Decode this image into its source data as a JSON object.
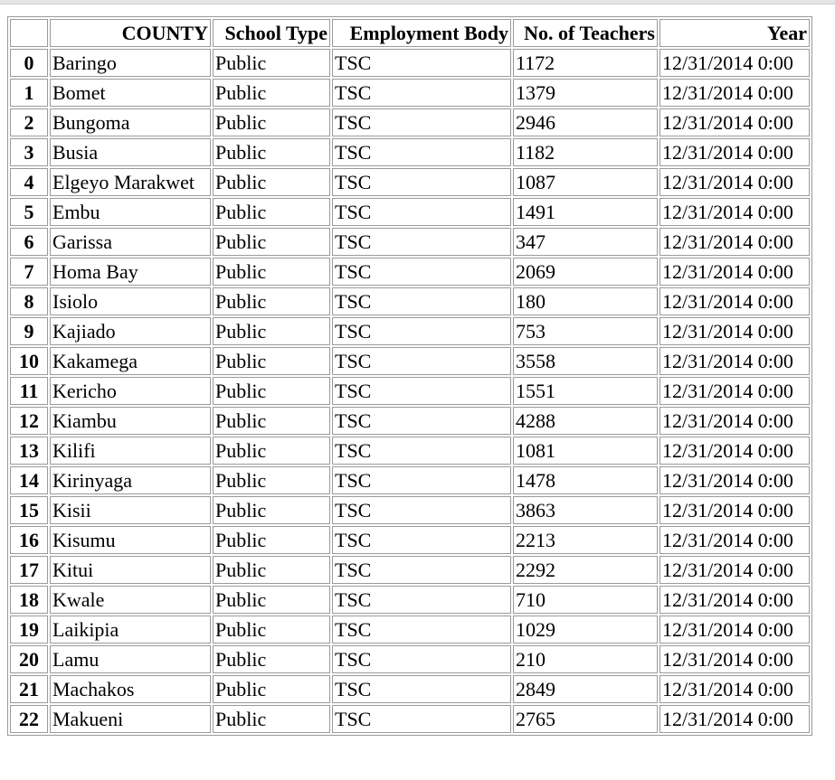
{
  "table": {
    "headers": {
      "index": "",
      "county": "COUNTY",
      "school_type": "School Type",
      "employment_body": "Employment Body",
      "teachers": "No. of Teachers",
      "year": "Year"
    },
    "rows": [
      {
        "index": "0",
        "county": "Baringo",
        "school_type": "Public",
        "employment_body": "TSC",
        "teachers": "1172",
        "year": "12/31/2014 0:00"
      },
      {
        "index": "1",
        "county": "Bomet",
        "school_type": "Public",
        "employment_body": "TSC",
        "teachers": "1379",
        "year": "12/31/2014 0:00"
      },
      {
        "index": "2",
        "county": "Bungoma",
        "school_type": "Public",
        "employment_body": "TSC",
        "teachers": "2946",
        "year": "12/31/2014 0:00"
      },
      {
        "index": "3",
        "county": "Busia",
        "school_type": "Public",
        "employment_body": "TSC",
        "teachers": "1182",
        "year": "12/31/2014 0:00"
      },
      {
        "index": "4",
        "county": "Elgeyo Marakwet",
        "school_type": "Public",
        "employment_body": "TSC",
        "teachers": "1087",
        "year": "12/31/2014 0:00"
      },
      {
        "index": "5",
        "county": "Embu",
        "school_type": "Public",
        "employment_body": "TSC",
        "teachers": "1491",
        "year": "12/31/2014 0:00"
      },
      {
        "index": "6",
        "county": "Garissa",
        "school_type": "Public",
        "employment_body": "TSC",
        "teachers": "347",
        "year": "12/31/2014 0:00"
      },
      {
        "index": "7",
        "county": "Homa Bay",
        "school_type": "Public",
        "employment_body": "TSC",
        "teachers": "2069",
        "year": "12/31/2014 0:00"
      },
      {
        "index": "8",
        "county": "Isiolo",
        "school_type": "Public",
        "employment_body": "TSC",
        "teachers": "180",
        "year": "12/31/2014 0:00"
      },
      {
        "index": "9",
        "county": "Kajiado",
        "school_type": "Public",
        "employment_body": "TSC",
        "teachers": "753",
        "year": "12/31/2014 0:00"
      },
      {
        "index": "10",
        "county": "Kakamega",
        "school_type": "Public",
        "employment_body": "TSC",
        "teachers": "3558",
        "year": "12/31/2014 0:00"
      },
      {
        "index": "11",
        "county": "Kericho",
        "school_type": "Public",
        "employment_body": "TSC",
        "teachers": "1551",
        "year": "12/31/2014 0:00"
      },
      {
        "index": "12",
        "county": "Kiambu",
        "school_type": "Public",
        "employment_body": "TSC",
        "teachers": "4288",
        "year": "12/31/2014 0:00"
      },
      {
        "index": "13",
        "county": "Kilifi",
        "school_type": "Public",
        "employment_body": "TSC",
        "teachers": "1081",
        "year": "12/31/2014 0:00"
      },
      {
        "index": "14",
        "county": "Kirinyaga",
        "school_type": "Public",
        "employment_body": "TSC",
        "teachers": "1478",
        "year": "12/31/2014 0:00"
      },
      {
        "index": "15",
        "county": "Kisii",
        "school_type": "Public",
        "employment_body": "TSC",
        "teachers": "3863",
        "year": "12/31/2014 0:00"
      },
      {
        "index": "16",
        "county": "Kisumu",
        "school_type": "Public",
        "employment_body": "TSC",
        "teachers": "2213",
        "year": "12/31/2014 0:00"
      },
      {
        "index": "17",
        "county": "Kitui",
        "school_type": "Public",
        "employment_body": "TSC",
        "teachers": "2292",
        "year": "12/31/2014 0:00"
      },
      {
        "index": "18",
        "county": "Kwale",
        "school_type": "Public",
        "employment_body": "TSC",
        "teachers": "710",
        "year": "12/31/2014 0:00"
      },
      {
        "index": "19",
        "county": "Laikipia",
        "school_type": "Public",
        "employment_body": "TSC",
        "teachers": "1029",
        "year": "12/31/2014 0:00"
      },
      {
        "index": "20",
        "county": "Lamu",
        "school_type": "Public",
        "employment_body": "TSC",
        "teachers": "210",
        "year": "12/31/2014 0:00"
      },
      {
        "index": "21",
        "county": "Machakos",
        "school_type": "Public",
        "employment_body": "TSC",
        "teachers": "2849",
        "year": "12/31/2014 0:00"
      },
      {
        "index": "22",
        "county": "Makueni",
        "school_type": "Public",
        "employment_body": "TSC",
        "teachers": "2765",
        "year": "12/31/2014 0:00"
      }
    ]
  }
}
